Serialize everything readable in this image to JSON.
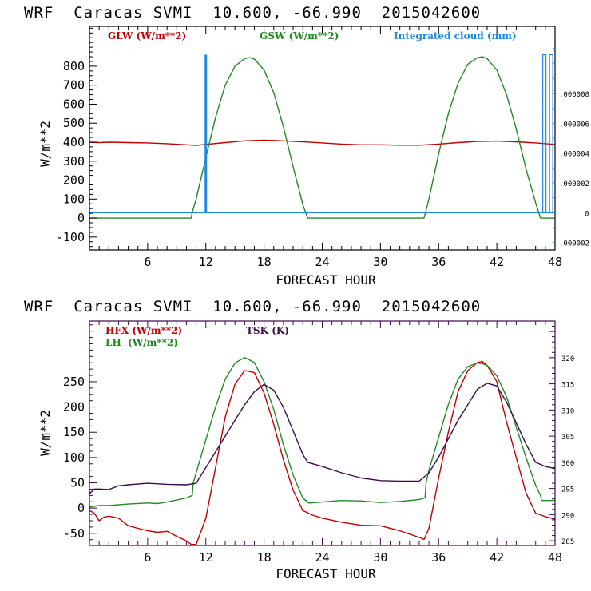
{
  "chart_data": [
    {
      "type": "line",
      "title": "WRF  Caracas SVMI  10.600, -66.990  2015042600",
      "xlabel": "FORECAST HOUR",
      "ylabel": "W/m**2",
      "xlim": [
        0,
        48
      ],
      "ylim": [
        -168,
        1010
      ],
      "x_ticks": [
        6,
        12,
        18,
        24,
        30,
        36,
        42,
        48
      ],
      "y_ticks": [
        -100,
        0,
        100,
        200,
        300,
        400,
        500,
        600,
        700,
        800
      ],
      "y2_ticks": [
        {
          "value": 8e-06,
          "label": ".000008"
        },
        {
          "value": 6e-06,
          "label": ".000006"
        },
        {
          "value": 4e-06,
          "label": ".000004"
        },
        {
          "value": 2e-06,
          "label": ".000002"
        },
        {
          "value": 0,
          "label": "0"
        },
        {
          "value": -2e-06,
          "label": "-.000002"
        }
      ],
      "y2lim": [
        -2.5e-06,
        1.25e-05
      ],
      "grid": false,
      "legend": [
        {
          "name": "GLW (W/m**2)",
          "color": "#c00000"
        },
        {
          "name": "GSW (W/m**2)",
          "color": "#228b22"
        },
        {
          "name": "Integrated cloud (mm)",
          "color": "#1e88e5"
        }
      ],
      "legend_placement": "top",
      "series": [
        {
          "name": "GLW (W/m**2)",
          "color": "#c00000",
          "axis": "left",
          "x": [
            0,
            1,
            2,
            4,
            6,
            8,
            10,
            11,
            12,
            14,
            16,
            18,
            20,
            22,
            24,
            26,
            28,
            30,
            32,
            34,
            36,
            38,
            40,
            42,
            44,
            46,
            48
          ],
          "y": [
            400,
            398,
            400,
            398,
            396,
            392,
            386,
            383,
            388,
            398,
            407,
            411,
            407,
            402,
            396,
            390,
            386,
            386,
            384,
            384,
            390,
            398,
            404,
            406,
            402,
            396,
            388
          ]
        },
        {
          "name": "GSW (W/m**2)",
          "color": "#228b22",
          "axis": "left",
          "x": [
            0,
            10.5,
            10.6,
            11,
            12,
            13,
            14,
            15,
            16,
            16.5,
            17,
            18,
            19,
            20,
            21,
            22,
            22.5,
            34.5,
            35,
            36,
            37,
            38,
            39,
            40,
            40.5,
            41,
            42,
            43,
            44,
            45,
            46,
            46.5,
            48
          ],
          "y": [
            0,
            0,
            30,
            100,
            320,
            530,
            700,
            800,
            840,
            845,
            838,
            780,
            660,
            480,
            270,
            70,
            0,
            0,
            100,
            340,
            550,
            710,
            810,
            845,
            850,
            840,
            780,
            650,
            470,
            260,
            80,
            0,
            0
          ]
        },
        {
          "name": "Integrated cloud (mm)",
          "color": "#1e88e5",
          "axis": "right",
          "style": "bars",
          "bars": [
            {
              "x": 12,
              "value": 1.06e-05,
              "filled": true
            },
            {
              "x": 46.9,
              "value": 1.06e-05,
              "filled": false
            },
            {
              "x": 47.6,
              "value": 1.06e-05,
              "filled": false
            }
          ],
          "baseline": 0
        }
      ]
    },
    {
      "type": "line",
      "title": "WRF  Caracas SVMI  10.600, -66.990  2015042600",
      "xlabel": "FORECAST HOUR",
      "ylabel": "W/m**2",
      "xlim": [
        0,
        48
      ],
      "ylim": [
        -74,
        370
      ],
      "x_ticks": [
        6,
        12,
        18,
        24,
        30,
        36,
        42,
        48
      ],
      "y_ticks": [
        -50,
        0,
        50,
        100,
        150,
        200,
        250
      ],
      "y2_ticks": [
        285,
        290,
        295,
        300,
        305,
        310,
        315,
        320
      ],
      "y2lim": [
        284.1,
        327
      ],
      "grid": false,
      "legend": [
        {
          "name": "HFX (W/m**2)",
          "color": "#c00000"
        },
        {
          "name": "LH  (W/m**2)",
          "color": "#228b22"
        },
        {
          "name": "TSK (K)",
          "color": "#3d0a4a"
        }
      ],
      "legend_placement": "top-left",
      "series": [
        {
          "name": "HFX (W/m**2)",
          "color": "#c00000",
          "axis": "left",
          "x": [
            0,
            0.5,
            1,
            1.5,
            2,
            3,
            4,
            5,
            6,
            7,
            8,
            9,
            10,
            10.5,
            11,
            12,
            13,
            14,
            15,
            16,
            17,
            18,
            19,
            20,
            21,
            22,
            23,
            24,
            26,
            28,
            30,
            32,
            34,
            34.5,
            35,
            36,
            37,
            38,
            39,
            40,
            40.5,
            41,
            42,
            43,
            44,
            45,
            46,
            47,
            48
          ],
          "y": [
            -5,
            -10,
            -25,
            -18,
            -16,
            -20,
            -35,
            -40,
            -45,
            -48,
            -46,
            -56,
            -65,
            -72,
            -72,
            -20,
            80,
            180,
            245,
            272,
            268,
            228,
            165,
            95,
            35,
            -5,
            -14,
            -20,
            -28,
            -34,
            -35,
            -45,
            -58,
            -62,
            -40,
            60,
            150,
            230,
            272,
            288,
            290,
            282,
            250,
            170,
            100,
            30,
            -10,
            -17,
            -22
          ]
        },
        {
          "name": "LH  (W/m**2)",
          "color": "#228b22",
          "axis": "left",
          "x": [
            0,
            1,
            2,
            4,
            6,
            7,
            8,
            10,
            10.6,
            10.7,
            11,
            12,
            13,
            14,
            15,
            16,
            17,
            18,
            19,
            20,
            21,
            22,
            22.6,
            22.7,
            24,
            26,
            28,
            30,
            32,
            34,
            34.6,
            34.7,
            35,
            36,
            37,
            38,
            39,
            40,
            40.5,
            41,
            42,
            43,
            44,
            45,
            46,
            46.5,
            46.6,
            48
          ],
          "y": [
            2,
            5,
            5,
            8,
            10,
            9,
            12,
            20,
            25,
            50,
            70,
            135,
            200,
            255,
            287,
            298,
            288,
            250,
            195,
            125,
            65,
            20,
            10,
            10,
            12,
            15,
            14,
            11,
            13,
            17,
            20,
            50,
            75,
            140,
            205,
            255,
            280,
            287,
            286,
            282,
            262,
            220,
            160,
            100,
            45,
            25,
            15,
            15
          ]
        },
        {
          "name": "TSK (K)",
          "color": "#3d0a4a",
          "axis": "right",
          "x": [
            0,
            0.5,
            1,
            2,
            3,
            4,
            6,
            8,
            10,
            11,
            12,
            14,
            16,
            17,
            18,
            19,
            20,
            21,
            22,
            22.5,
            24,
            26,
            28,
            30,
            32,
            34,
            35,
            36,
            38,
            40,
            41,
            42,
            43,
            44,
            45,
            46,
            46.5,
            47,
            48
          ],
          "y": [
            294,
            294.9,
            294.9,
            294.8,
            295.5,
            295.7,
            296,
            295.8,
            295.7,
            296,
            299,
            305,
            311,
            313.5,
            314.9,
            313.8,
            310.5,
            306,
            301.5,
            300,
            299.2,
            298,
            297,
            296.5,
            296.4,
            296.4,
            298,
            301,
            308,
            314,
            315.1,
            314.6,
            311.5,
            307.5,
            303.5,
            300,
            299.6,
            299.2,
            298.8
          ]
        }
      ]
    }
  ],
  "page": {
    "plot1": {
      "title": "WRF  Caracas SVMI  10.600, -66.990  2015042600",
      "ylabel": "W/m**2",
      "xlabel": "FORECAST HOUR",
      "legend_glw": "GLW (W/m**2)",
      "legend_gsw": "GSW (W/m**2)",
      "legend_cloud": "Integrated cloud (mm)"
    },
    "plot2": {
      "title": "WRF  Caracas SVMI  10.600, -66.990  2015042600",
      "ylabel": "W/m**2",
      "xlabel": "FORECAST HOUR",
      "legend_hfx": "HFX (W/m**2)",
      "legend_lh": "LH  (W/m**2)",
      "legend_tsk": "TSK (K)"
    }
  }
}
